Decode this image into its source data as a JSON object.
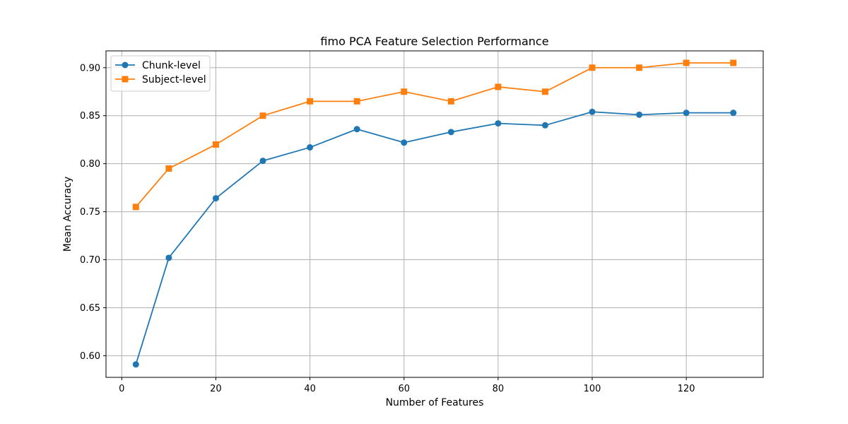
{
  "chart_data": {
    "type": "line",
    "title": "fimo PCA Feature Selection Performance",
    "xlabel": "Number of Features",
    "ylabel": "Mean Accuracy",
    "xlim": [
      -3.35,
      136.35
    ],
    "ylim": [
      0.5775,
      0.9175
    ],
    "xticks": [
      0,
      20,
      40,
      60,
      80,
      100,
      120
    ],
    "yticks": [
      0.6,
      0.65,
      0.7,
      0.75,
      0.8,
      0.85,
      0.9
    ],
    "grid": true,
    "legend_position": "top-left",
    "x": [
      3,
      10,
      20,
      30,
      40,
      50,
      60,
      70,
      80,
      90,
      100,
      110,
      120,
      130
    ],
    "series": [
      {
        "name": "Chunk-level",
        "color": "#1f77b4",
        "marker": "circle",
        "values": [
          0.591,
          0.702,
          0.764,
          0.803,
          0.817,
          0.836,
          0.822,
          0.833,
          0.842,
          0.84,
          0.854,
          0.851,
          0.853,
          0.853
        ]
      },
      {
        "name": "Subject-level",
        "color": "#ff7f0e",
        "marker": "square",
        "values": [
          0.755,
          0.795,
          0.82,
          0.85,
          0.865,
          0.865,
          0.875,
          0.865,
          0.88,
          0.875,
          0.9,
          0.9,
          0.905,
          0.905
        ]
      }
    ]
  }
}
